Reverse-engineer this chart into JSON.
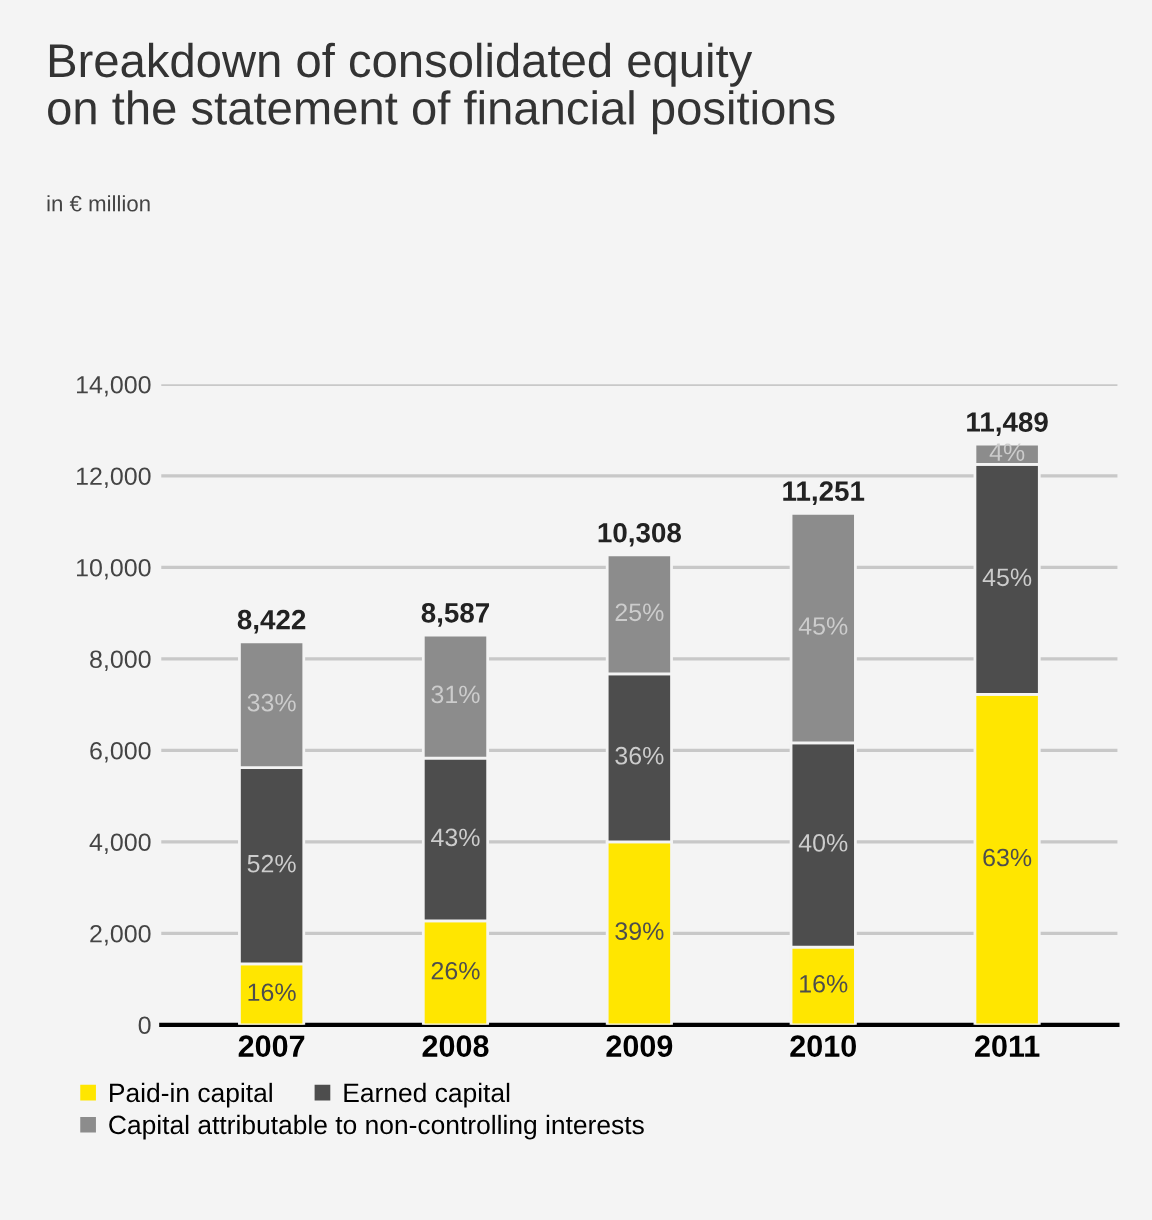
{
  "chart_data": {
    "type": "bar",
    "stacked": true,
    "title": "Breakdown of consolidated equity\non the statement of financial positions",
    "subtitle": "in € million",
    "categories": [
      "2007",
      "2008",
      "2009",
      "2010",
      "2011"
    ],
    "series": [
      {
        "name": "Paid-in capital",
        "color": "#ffe600",
        "values": [
          1330,
          2270,
          4000,
          1700,
          7220
        ]
      },
      {
        "name": "Earned capital",
        "color": "#4d4d4d",
        "values": [
          4290,
          3560,
          3670,
          4460,
          5030
        ]
      },
      {
        "name": "Capital attributable to non-controlling interests",
        "color": "#8c8c8c",
        "values": [
          2750,
          2690,
          2600,
          5020,
          440
        ]
      }
    ],
    "annotations": [
      "16%",
      "26%",
      "39%",
      "16%",
      "63%",
      "52%",
      "43%",
      "36%",
      "40%",
      "45%",
      "33%",
      "31%",
      "25%",
      "45%",
      "4%",
      "8,422",
      "8,587",
      "10,308",
      "11,251",
      "11,489"
    ],
    "ylim": [
      0,
      14000
    ],
    "yticks": [
      {
        "value": 0,
        "label": "0"
      },
      {
        "value": 2000,
        "label": "2,000"
      },
      {
        "value": 4000,
        "label": "4,000"
      },
      {
        "value": 6000,
        "label": "6,000"
      },
      {
        "value": 8000,
        "label": "8,000"
      },
      {
        "value": 10000,
        "label": "10,000"
      },
      {
        "value": 12000,
        "label": "12,000"
      },
      {
        "value": 14000,
        "label": "14,000"
      }
    ],
    "grid": "y",
    "legend": "bottom"
  }
}
